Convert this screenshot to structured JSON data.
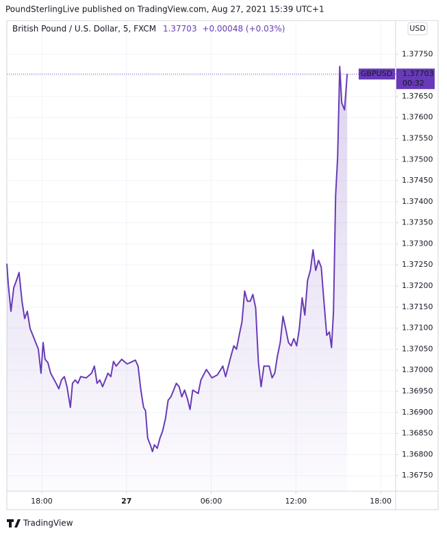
{
  "header": {
    "publisher": "PoundSterlingLive published on TradingView.com, Aug 27, 2021 15:39 UTC+1",
    "footer": "TradingView"
  },
  "chart_data": {
    "type": "line",
    "title": "British Pound / U.S. Dollar, 5, FXCM",
    "last_price": 1.37703,
    "change": "+0.00048 (+0.03%)",
    "countdown": "00:32",
    "currency": "USD",
    "xlim": [
      15.53,
      43.06
    ],
    "ylim": [
      1.36713,
      1.3783
    ],
    "xticks": [
      {
        "value": 18,
        "label": "18:00"
      },
      {
        "value": 24,
        "label": "27"
      },
      {
        "value": 30,
        "label": "06:00"
      },
      {
        "value": 36,
        "label": "12:00"
      },
      {
        "value": 42,
        "label": "18:00"
      }
    ],
    "yticks": [
      {
        "value": 1.3675,
        "label": "1.36750"
      },
      {
        "value": 1.368,
        "label": "1.36800"
      },
      {
        "value": 1.3685,
        "label": "1.36850"
      },
      {
        "value": 1.369,
        "label": "1.36900"
      },
      {
        "value": 1.3695,
        "label": "1.36950"
      },
      {
        "value": 1.37,
        "label": "1.37000"
      },
      {
        "value": 1.3705,
        "label": "1.37050"
      },
      {
        "value": 1.371,
        "label": "1.37100"
      },
      {
        "value": 1.3715,
        "label": "1.37150"
      },
      {
        "value": 1.372,
        "label": "1.37200"
      },
      {
        "value": 1.3725,
        "label": "1.37250"
      },
      {
        "value": 1.373,
        "label": "1.37300"
      },
      {
        "value": 1.3735,
        "label": "1.37350"
      },
      {
        "value": 1.374,
        "label": "1.37400"
      },
      {
        "value": 1.3745,
        "label": "1.37450"
      },
      {
        "value": 1.375,
        "label": "1.37500"
      },
      {
        "value": 1.3755,
        "label": "1.37550"
      },
      {
        "value": 1.376,
        "label": "1.37600"
      },
      {
        "value": 1.3765,
        "label": "1.37650"
      },
      {
        "value": 1.377,
        "label": "1.37700"
      },
      {
        "value": 1.3775,
        "label": "1.37750"
      }
    ],
    "grid": true,
    "x": [
      15.53,
      15.63,
      15.82,
      16.02,
      16.21,
      16.4,
      16.6,
      16.79,
      16.98,
      17.18,
      17.37,
      17.76,
      17.95,
      18.1,
      18.24,
      18.44,
      18.63,
      19.02,
      19.21,
      19.4,
      19.6,
      19.79,
      20.03,
      20.18,
      20.37,
      20.56,
      20.76,
      21.15,
      21.53,
      21.73,
      21.92,
      22.11,
      22.31,
      22.69,
      22.89,
      23.08,
      23.27,
      23.66,
      24.05,
      24.44,
      24.63,
      24.82,
      25.02,
      25.21,
      25.35,
      25.5,
      25.69,
      25.84,
      25.98,
      26.18,
      26.37,
      26.56,
      26.76,
      26.95,
      27.15,
      27.53,
      27.73,
      27.92,
      28.11,
      28.31,
      28.5,
      28.69,
      29.08,
      29.27,
      29.66,
      30.05,
      30.44,
      30.82,
      31.02,
      31.4,
      31.6,
      31.79,
      31.98,
      32.18,
      32.37,
      32.56,
      32.76,
      32.95,
      33.15,
      33.34,
      33.53,
      33.73,
      34.11,
      34.31,
      34.5,
      34.69,
      34.89,
      35.08,
      35.27,
      35.47,
      35.66,
      35.85,
      36.05,
      36.24,
      36.44,
      36.63,
      36.82,
      37.02,
      37.21,
      37.4,
      37.6,
      37.79,
      37.98,
      38.18,
      38.37,
      38.52,
      38.66,
      38.81,
      38.95,
      39.1,
      39.24,
      39.44,
      39.63
    ],
    "series": [
      {
        "name": "GBPUSD",
        "color": "#673ab7",
        "values": [
          1.37253,
          1.37204,
          1.3714,
          1.37196,
          1.37213,
          1.37232,
          1.37164,
          1.37123,
          1.3714,
          1.37099,
          1.37083,
          1.3705,
          1.36993,
          1.37066,
          1.37026,
          1.37018,
          1.36993,
          1.36969,
          1.36956,
          1.36977,
          1.36985,
          1.36961,
          1.36912,
          1.36969,
          1.36977,
          1.36969,
          1.36985,
          1.36982,
          1.36993,
          1.3701,
          1.36969,
          1.36977,
          1.36961,
          1.36993,
          1.36985,
          1.37021,
          1.3701,
          1.37026,
          1.37015,
          1.37021,
          1.37024,
          1.3701,
          1.36953,
          1.36912,
          1.36904,
          1.36839,
          1.36823,
          1.36807,
          1.36823,
          1.36815,
          1.36839,
          1.36856,
          1.36885,
          1.36929,
          1.36937,
          1.36969,
          1.36961,
          1.36937,
          1.36953,
          1.36933,
          1.36907,
          1.36953,
          1.36945,
          1.36977,
          1.37002,
          1.36982,
          1.36989,
          1.3701,
          1.36985,
          1.37034,
          1.37058,
          1.3705,
          1.37083,
          1.37115,
          1.37188,
          1.37164,
          1.37164,
          1.3718,
          1.37148,
          1.37018,
          1.36961,
          1.3701,
          1.3701,
          1.36982,
          1.36993,
          1.37034,
          1.37066,
          1.37128,
          1.37099,
          1.37066,
          1.37058,
          1.37075,
          1.37058,
          1.37099,
          1.37172,
          1.37131,
          1.37213,
          1.37237,
          1.37286,
          1.37237,
          1.37261,
          1.37245,
          1.37164,
          1.37083,
          1.37091,
          1.37054,
          1.3714,
          1.37415,
          1.37505,
          1.37721,
          1.37635,
          1.37618,
          1.37703
        ]
      }
    ]
  }
}
